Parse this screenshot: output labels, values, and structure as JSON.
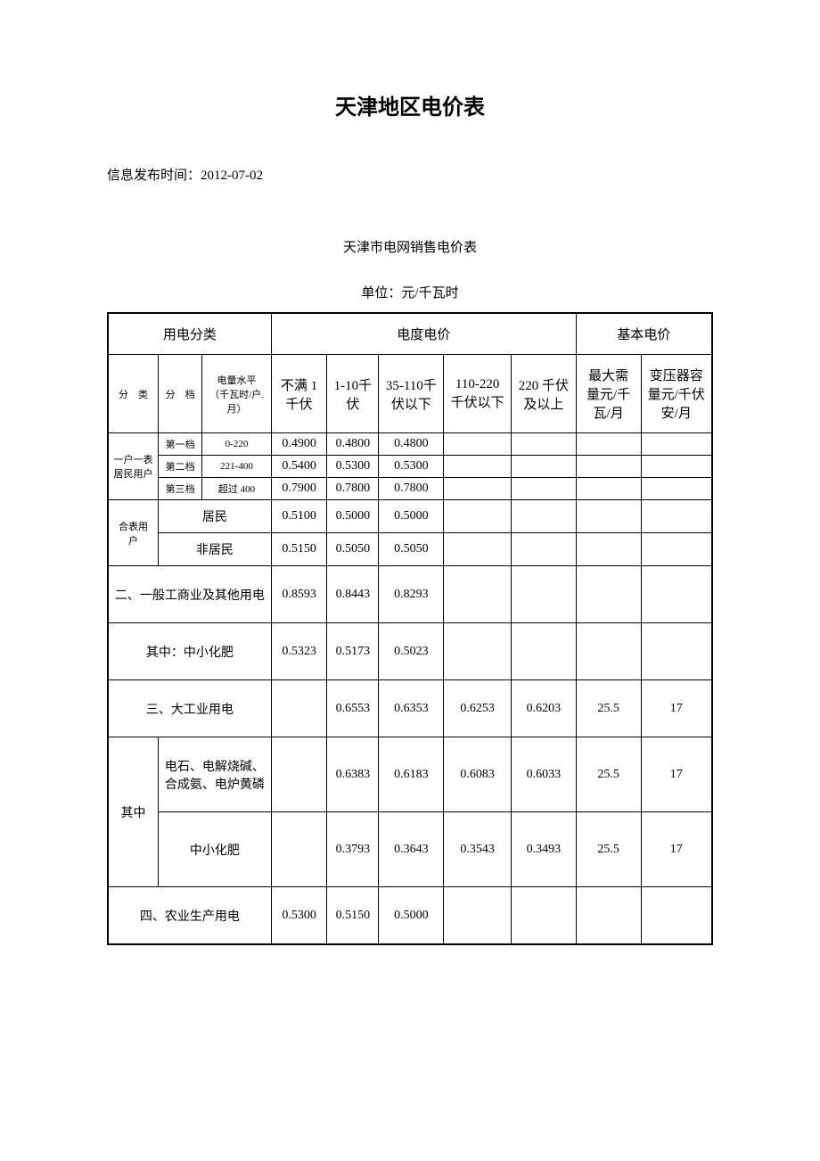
{
  "title": "天津地区电价表",
  "publish_time_label": "信息发布时间：",
  "publish_time": "2012-07-02",
  "subtitle": "天津市电网销售电价表",
  "unit": "单位：元/千瓦时",
  "headers": {
    "category": "用电分类",
    "energy_price": "电度电价",
    "base_price": "基本电价",
    "type": "分　类",
    "tier": "分　档",
    "level": "电量水平",
    "level_unit": "（千瓦时/户.月）",
    "voltage1": "不满 1千伏",
    "voltage2": "1-10千伏",
    "voltage3": "35-110千伏以下",
    "voltage4": "110-220千伏以下",
    "voltage5": "220 千伏及以上",
    "max_demand": "最大需量元/千瓦/月",
    "transformer": "变压器容量元/千伏安/月"
  },
  "rows": [
    {
      "cat": "一户一表居民用户",
      "tier": "第一档",
      "level": "0-220",
      "v1": "0.4900",
      "v2": "0.4800",
      "v3": "0.4800",
      "v4": "",
      "v5": "",
      "md": "",
      "tc": ""
    },
    {
      "tier": "第二档",
      "level": "221-400",
      "v1": "0.5400",
      "v2": "0.5300",
      "v3": "0.5300",
      "v4": "",
      "v5": "",
      "md": "",
      "tc": ""
    },
    {
      "tier": "第三档",
      "level": "超过 400",
      "v1": "0.7900",
      "v2": "0.7800",
      "v3": "0.7800",
      "v4": "",
      "v5": "",
      "md": "",
      "tc": ""
    },
    {
      "cat": "合表用户",
      "sub": "居民",
      "v1": "0.5100",
      "v2": "0.5000",
      "v3": "0.5000",
      "v4": "",
      "v5": "",
      "md": "",
      "tc": ""
    },
    {
      "sub": "非居民",
      "v1": "0.5150",
      "v2": "0.5050",
      "v3": "0.5050",
      "v4": "",
      "v5": "",
      "md": "",
      "tc": ""
    },
    {
      "cat": "二、一般工商业及其他用电",
      "v1": "0.8593",
      "v2": "0.8443",
      "v3": "0.8293",
      "v4": "",
      "v5": "",
      "md": "",
      "tc": ""
    },
    {
      "cat": "其中：中小化肥",
      "v1": "0.5323",
      "v2": "0.5173",
      "v3": "0.5023",
      "v4": "",
      "v5": "",
      "md": "",
      "tc": ""
    },
    {
      "cat": "三、大工业用电",
      "v1": "",
      "v2": "0.6553",
      "v3": "0.6353",
      "v4": "0.6253",
      "v5": "0.6203",
      "md": "25.5",
      "tc": "17"
    },
    {
      "cat": "其中",
      "sub": "电石、电解烧碱、合成氨、电炉黄磷",
      "v1": "",
      "v2": "0.6383",
      "v3": "0.6183",
      "v4": "0.6083",
      "v5": "0.6033",
      "md": "25.5",
      "tc": "17"
    },
    {
      "sub": "中小化肥",
      "v1": "",
      "v2": "0.3793",
      "v3": "0.3643",
      "v4": "0.3543",
      "v5": "0.3493",
      "md": "25.5",
      "tc": "17"
    },
    {
      "cat": "四、农业生产用电",
      "v1": "0.5300",
      "v2": "0.5150",
      "v3": "0.5000",
      "v4": "",
      "v5": "",
      "md": "",
      "tc": ""
    }
  ]
}
